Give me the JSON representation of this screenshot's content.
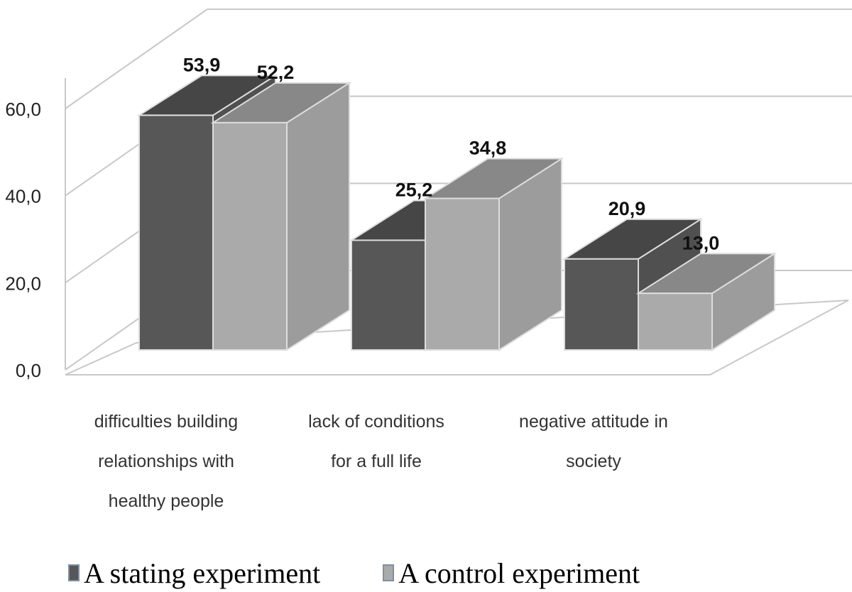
{
  "chart_data": {
    "type": "bar",
    "title": "",
    "xlabel": "",
    "ylabel": "",
    "ylim": [
      0,
      60
    ],
    "yticks": [
      "0,0",
      "20,0",
      "40,0",
      "60,0"
    ],
    "categories": [
      [
        "difficulties building",
        "relationships with",
        "healthy people"
      ],
      [
        "lack of conditions",
        "for a full life"
      ],
      [
        "negative attitude in",
        "society"
      ]
    ],
    "series": [
      {
        "name": "A stating experiment",
        "values": [
          53.9,
          25.2,
          20.9
        ],
        "labels": [
          "53,9",
          "25,2",
          "20,9"
        ],
        "color": "#575757"
      },
      {
        "name": "A control experiment",
        "values": [
          52.2,
          34.8,
          13.0
        ],
        "labels": [
          "52,2",
          "34,8",
          "13,0"
        ],
        "color": "#aaaaaa"
      }
    ],
    "grid": true,
    "style": "3d",
    "legend_position": "bottom"
  }
}
